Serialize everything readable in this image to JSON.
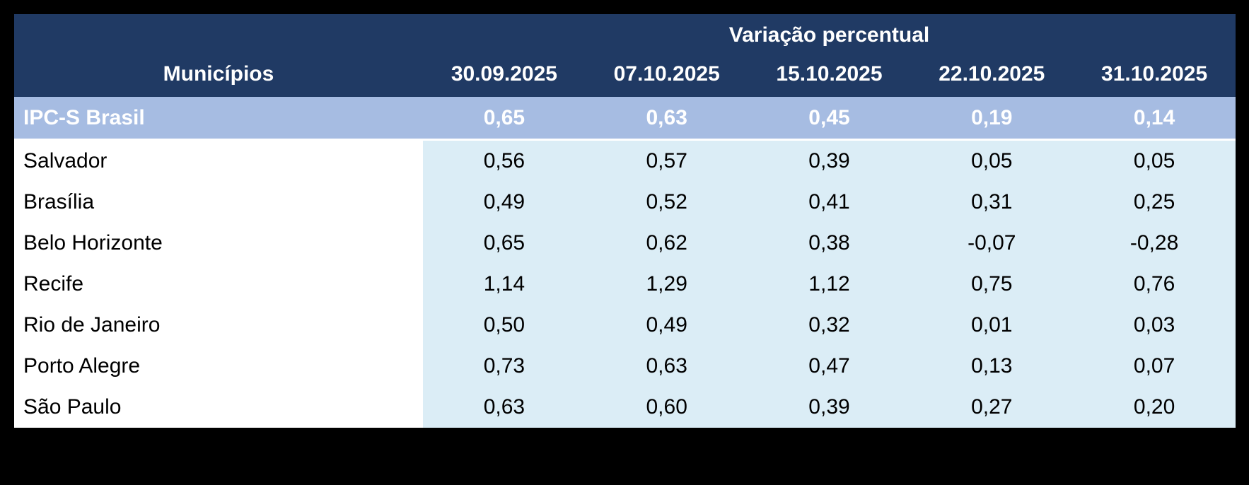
{
  "header": {
    "group_title": "Variação percentual",
    "municipality_column": "Municípios",
    "date_columns": [
      "30.09.2025",
      "07.10.2025",
      "15.10.2025",
      "22.10.2025",
      "31.10.2025"
    ]
  },
  "summary_row": {
    "label": "IPC-S Brasil",
    "values": [
      "0,65",
      "0,63",
      "0,45",
      "0,19",
      "0,14"
    ]
  },
  "rows": [
    {
      "label": "Salvador",
      "values": [
        "0,56",
        "0,57",
        "0,39",
        "0,05",
        "0,05"
      ]
    },
    {
      "label": "Brasília",
      "values": [
        "0,49",
        "0,52",
        "0,41",
        "0,31",
        "0,25"
      ]
    },
    {
      "label": "Belo Horizonte",
      "values": [
        "0,65",
        "0,62",
        "0,38",
        "-0,07",
        "-0,28"
      ]
    },
    {
      "label": "Recife",
      "values": [
        "1,14",
        "1,29",
        "1,12",
        "0,75",
        "0,76"
      ]
    },
    {
      "label": "Rio de Janeiro",
      "values": [
        "0,50",
        "0,49",
        "0,32",
        "0,01",
        "0,03"
      ]
    },
    {
      "label": "Porto Alegre",
      "values": [
        "0,73",
        "0,63",
        "0,47",
        "0,13",
        "0,07"
      ]
    },
    {
      "label": "São Paulo",
      "values": [
        "0,63",
        "0,60",
        "0,39",
        "0,27",
        "0,20"
      ]
    }
  ],
  "colors": {
    "page_bg": "#000000",
    "header_bg": "#203A64",
    "header_text": "#FFFFFF",
    "summary_bg": "#A6BCE2",
    "summary_text": "#FFFFFF",
    "data_cell_bg": "#DBEDF6",
    "label_cell_bg": "#FFFFFF",
    "body_text": "#000000"
  },
  "chart_data": {
    "type": "table",
    "title": "Variação percentual",
    "columns": [
      "Municípios",
      "30.09.2025",
      "07.10.2025",
      "15.10.2025",
      "22.10.2025",
      "31.10.2025"
    ],
    "rows": [
      [
        "IPC-S Brasil",
        0.65,
        0.63,
        0.45,
        0.19,
        0.14
      ],
      [
        "Salvador",
        0.56,
        0.57,
        0.39,
        0.05,
        0.05
      ],
      [
        "Brasília",
        0.49,
        0.52,
        0.41,
        0.31,
        0.25
      ],
      [
        "Belo Horizonte",
        0.65,
        0.62,
        0.38,
        -0.07,
        -0.28
      ],
      [
        "Recife",
        1.14,
        1.29,
        1.12,
        0.75,
        0.76
      ],
      [
        "Rio de Janeiro",
        0.5,
        0.49,
        0.32,
        0.01,
        0.03
      ],
      [
        "Porto Alegre",
        0.73,
        0.63,
        0.47,
        0.13,
        0.07
      ],
      [
        "São Paulo",
        0.63,
        0.6,
        0.39,
        0.27,
        0.2
      ]
    ],
    "notes": "Decimal comma formatting as displayed; summary row IPC-S Brasil highlighted."
  }
}
